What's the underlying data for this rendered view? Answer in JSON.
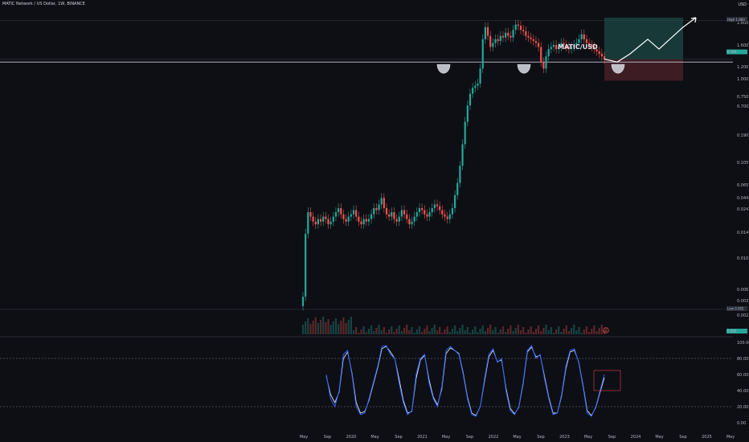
{
  "header": {
    "symbol_title": "MATIC Network / US Dollar, 1W, BINANCE"
  },
  "price_axis": {
    "unit_label": "USD",
    "labels": [
      "1.800",
      "1.600",
      "1.200",
      "1.000",
      "0.750",
      "0.700",
      "0.190",
      "0.105",
      "0.065",
      "0.044",
      "0.024",
      "0.014",
      "0.010",
      "0.006",
      "0.003",
      "0.002"
    ]
  },
  "badges": {
    "high_label": "High",
    "high_value": "1.880",
    "low_label": "Low",
    "low_value": "0.002",
    "price_value": "0.700",
    "volume_value": "0.000"
  },
  "annotation": {
    "pair_label": "MATIC/USD",
    "circle_marker": "0"
  },
  "stoch_axis": {
    "labels": [
      "100.00",
      "80.00",
      "60.00",
      "40.00",
      "20.00",
      "0.00"
    ]
  },
  "time_axis": {
    "labels": [
      "May",
      "Sep",
      "2020",
      "May",
      "Sep",
      "2021",
      "May",
      "Sep",
      "2022",
      "May",
      "Sep",
      "2023",
      "May",
      "Sep",
      "2024",
      "May",
      "Sep",
      "2025",
      "May"
    ]
  },
  "colors": {
    "up": "#26a69a",
    "down": "#ef5350",
    "k_line": "#2962ff",
    "d_line": "#e1e6f0",
    "long_zone": "#1b4a44",
    "stop_zone": "#4a1f28"
  },
  "chart_data": {
    "type": "candlestick",
    "price_scale": "log",
    "weekly_closes_usd": [
      0.0027,
      0.012,
      0.02,
      0.018,
      0.016,
      0.015,
      0.017,
      0.016,
      0.018,
      0.017,
      0.015,
      0.016,
      0.018,
      0.02,
      0.022,
      0.019,
      0.017,
      0.016,
      0.018,
      0.019,
      0.021,
      0.018,
      0.016,
      0.015,
      0.017,
      0.016,
      0.017,
      0.019,
      0.022,
      0.021,
      0.024,
      0.028,
      0.022,
      0.019,
      0.018,
      0.02,
      0.017,
      0.016,
      0.018,
      0.021,
      0.019,
      0.017,
      0.015,
      0.016,
      0.018,
      0.02,
      0.022,
      0.021,
      0.019,
      0.018,
      0.02,
      0.022,
      0.024,
      0.023,
      0.021,
      0.019,
      0.018,
      0.017,
      0.019,
      0.022,
      0.03,
      0.04,
      0.06,
      0.1,
      0.17,
      0.25,
      0.33,
      0.38,
      0.4,
      0.42,
      0.6,
      1.2,
      1.6,
      1.3,
      1.0,
      1.1,
      1.2,
      1.15,
      1.3,
      1.25,
      1.4,
      1.3,
      1.25,
      1.5,
      1.7,
      1.65,
      1.5,
      1.45,
      1.3,
      1.25,
      1.2,
      1.15,
      1.1,
      1.0,
      0.7,
      0.6,
      0.8,
      0.95,
      1.0,
      1.05,
      0.95,
      1.0,
      1.1,
      1.05,
      1.0,
      0.95,
      1.0,
      1.05,
      1.1,
      1.2,
      1.35,
      1.2,
      1.1,
      1.05,
      1.0,
      0.95,
      0.9,
      0.85,
      0.8,
      0.75
    ],
    "stoch_rsi_k": [
      60,
      30,
      20,
      40,
      85,
      90,
      60,
      20,
      10,
      12,
      30,
      50,
      70,
      95,
      96,
      85,
      80,
      50,
      25,
      10,
      15,
      60,
      80,
      85,
      50,
      30,
      20,
      45,
      90,
      95,
      90,
      85,
      60,
      30,
      10,
      8,
      20,
      55,
      85,
      92,
      75,
      80,
      40,
      15,
      10,
      20,
      50,
      90,
      96,
      80,
      85,
      55,
      30,
      10,
      12,
      35,
      70,
      90,
      92,
      75,
      45,
      12,
      8,
      20,
      40,
      60
    ],
    "stoch_rsi_d": [
      58,
      35,
      25,
      38,
      80,
      88,
      62,
      25,
      12,
      14,
      28,
      48,
      68,
      92,
      95,
      88,
      80,
      55,
      28,
      12,
      14,
      55,
      78,
      84,
      54,
      32,
      22,
      42,
      86,
      93,
      90,
      86,
      62,
      32,
      12,
      9,
      20,
      52,
      82,
      90,
      76,
      78,
      43,
      18,
      11,
      19,
      48,
      88,
      94,
      82,
      84,
      58,
      32,
      12,
      12,
      33,
      67,
      88,
      90,
      76,
      47,
      15,
      9,
      19,
      38,
      56
    ],
    "stoch_levels": [
      80,
      20
    ],
    "horizontal_levels_usd": [
      1.88,
      0.75,
      0.7,
      0.002
    ],
    "projection_path_usd": [
      0.75,
      0.7,
      0.85,
      1.2,
      0.95,
      1.6,
      2.0
    ],
    "long_position": {
      "entry": 0.75,
      "target": 2.0,
      "stop": 0.45
    }
  }
}
